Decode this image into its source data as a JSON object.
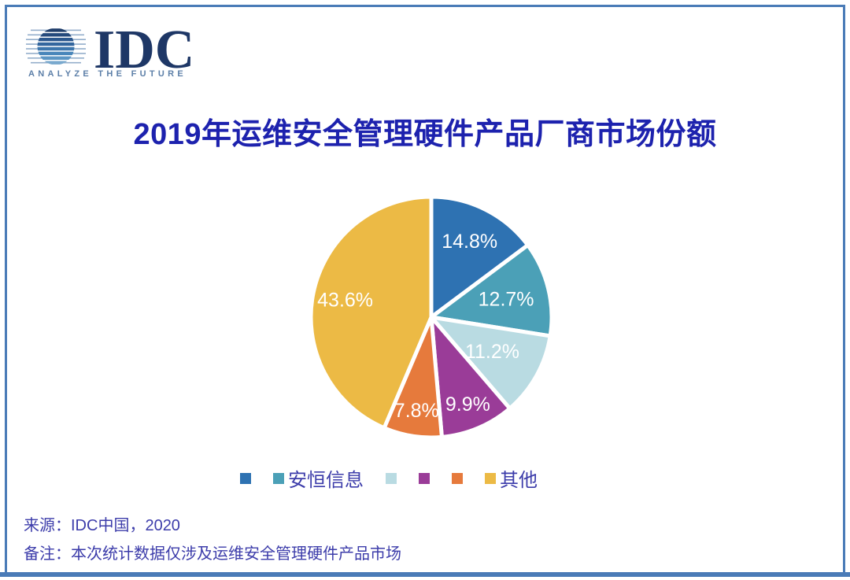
{
  "page": {
    "logo": {
      "text": "IDC",
      "tagline": "ANALYZE THE FUTURE"
    },
    "title": "2019年运维安全管理硬件产品厂商市场份额",
    "source": "来源：IDC中国，2020",
    "note": "备注：本次统计数据仅涉及运维安全管理硬件产品市场"
  },
  "chart_data": {
    "type": "pie",
    "title": "2019年运维安全管理硬件产品厂商市场份额",
    "start_angle_deg": 0,
    "direction": "clockwise",
    "label_color": "#ffffff",
    "legend_position": "bottom",
    "slices": [
      {
        "label": "",
        "value": 14.8,
        "display": "14.8%",
        "color": "#2e72b2"
      },
      {
        "label": "安恒信息",
        "value": 12.7,
        "display": "12.7%",
        "color": "#4ba0b7"
      },
      {
        "label": "",
        "value": 11.2,
        "display": "11.2%",
        "color": "#b9dbe2"
      },
      {
        "label": "",
        "value": 9.9,
        "display": "9.9%",
        "color": "#9a3c98"
      },
      {
        "label": "",
        "value": 7.8,
        "display": "7.8%",
        "color": "#e67a3c"
      },
      {
        "label": "其他",
        "value": 43.6,
        "display": "43.6%",
        "color": "#ecba45"
      }
    ]
  },
  "colors": {
    "title": "#1d22ae",
    "footnote_text": "#3c3caa",
    "frame": "#4a7bb7",
    "logo_navy": "#1e3766",
    "tagline": "#5c7fa8"
  }
}
